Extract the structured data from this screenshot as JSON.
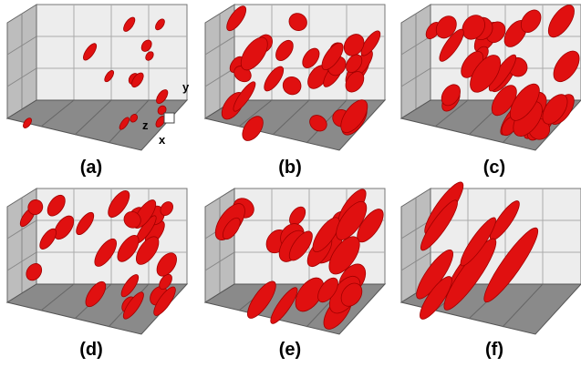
{
  "panels": [
    {
      "label": "(a)"
    },
    {
      "label": "(b)"
    },
    {
      "label": "(c)"
    },
    {
      "label": "(d)"
    },
    {
      "label": "(e)"
    },
    {
      "label": "(f)"
    }
  ],
  "axes": {
    "y": "y",
    "z": "z",
    "x": "x"
  }
}
